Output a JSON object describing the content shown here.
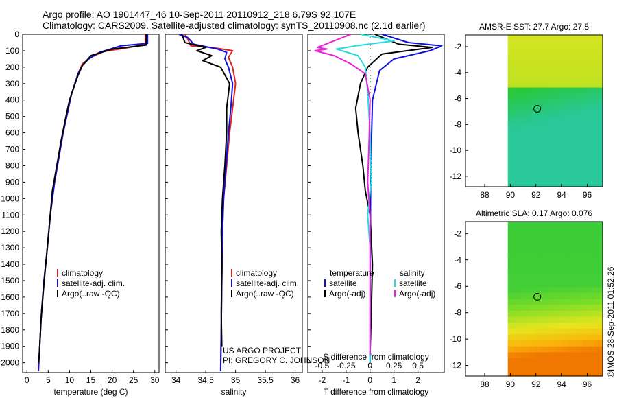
{
  "header": {
    "line1": "Argo profile: AO 1901447_46 10-Sep-2011 20110912_218 6.79S 92.107E",
    "line2": "Climatology: CARS2009. Satellite-adjusted climatology: synTS_20110908.nc (2.1d earlier)"
  },
  "colors": {
    "climatology": "#dd2222",
    "satellite": "#1010dd",
    "argo": "#000000",
    "sal_satellite": "#22dddd",
    "sal_argo": "#ee22dd"
  },
  "credits": {
    "project": "US ARGO PROJECT",
    "pi": "PI: GREGORY C. JOHNSON",
    "stamp": "©IMOS 28-Sep-2011 01:52:26"
  },
  "chart_data": [
    {
      "id": "temperature",
      "type": "line",
      "xlabel": "temperature (deg C)",
      "xlim": [
        -1,
        31
      ],
      "xticks": [
        0,
        5,
        10,
        15,
        20,
        25,
        30
      ],
      "ylim": [
        2060,
        0
      ],
      "yticks": [
        0,
        100,
        200,
        300,
        400,
        500,
        600,
        700,
        800,
        900,
        1000,
        1100,
        1200,
        1300,
        1400,
        1500,
        1600,
        1700,
        1800,
        1900,
        2000
      ],
      "legend": [
        "climatology",
        "satellite-adj. clim.",
        "Argo(..raw -QC)"
      ],
      "series": [
        {
          "name": "climatology",
          "color_key": "climatology",
          "points": [
            [
              27.8,
              0
            ],
            [
              27.8,
              60
            ],
            [
              24,
              80
            ],
            [
              18,
              105
            ],
            [
              15,
              140
            ],
            [
              13,
              180
            ],
            [
              12,
              240
            ],
            [
              10.5,
              360
            ],
            [
              9.5,
              480
            ],
            [
              8.5,
              600
            ],
            [
              7.5,
              750
            ],
            [
              6.5,
              900
            ],
            [
              5.5,
              1100
            ],
            [
              4.8,
              1300
            ],
            [
              4,
              1500
            ],
            [
              3.4,
              1700
            ],
            [
              3,
              1900
            ],
            [
              2.7,
              2050
            ]
          ]
        },
        {
          "name": "satellite-adj. clim.",
          "color_key": "satellite",
          "points": [
            [
              28.3,
              0
            ],
            [
              28.3,
              55
            ],
            [
              22,
              70
            ],
            [
              17,
              110
            ],
            [
              14.5,
              150
            ],
            [
              13,
              190
            ],
            [
              12,
              240
            ],
            [
              10.5,
              360
            ],
            [
              9.5,
              480
            ],
            [
              8.5,
              600
            ],
            [
              7.5,
              750
            ],
            [
              6.5,
              900
            ],
            [
              5.5,
              1100
            ],
            [
              4.8,
              1300
            ],
            [
              4,
              1500
            ],
            [
              3.4,
              1700
            ],
            [
              3,
              1900
            ],
            [
              2.7,
              2050
            ]
          ]
        },
        {
          "name": "Argo(..raw -QC)",
          "color_key": "argo",
          "points": [
            [
              28,
              0
            ],
            [
              28,
              65
            ],
            [
              20,
              90
            ],
            [
              15,
              130
            ],
            [
              13,
              190
            ],
            [
              12,
              250
            ],
            [
              10,
              400
            ],
            [
              9,
              520
            ],
            [
              8,
              650
            ],
            [
              7,
              800
            ],
            [
              6,
              950
            ],
            [
              5.3,
              1150
            ],
            [
              4.6,
              1350
            ],
            [
              3.9,
              1550
            ],
            [
              3.3,
              1750
            ],
            [
              2.9,
              1950
            ],
            [
              2.7,
              2000
            ]
          ]
        }
      ]
    },
    {
      "id": "salinity",
      "type": "line",
      "xlabel": "salinity",
      "xlim": [
        33.82,
        36.12
      ],
      "xticks": [
        34,
        34.5,
        35,
        35.5,
        36
      ],
      "ylim": [
        2060,
        0
      ],
      "legend": [
        "climatology",
        "satellite-adj. clim.",
        "Argo(..raw -QC)"
      ],
      "series": [
        {
          "name": "climatology",
          "color_key": "climatology",
          "points": [
            [
              34.15,
              0
            ],
            [
              34.2,
              30
            ],
            [
              34.25,
              70
            ],
            [
              34.6,
              80
            ],
            [
              34.95,
              100
            ],
            [
              34.88,
              140
            ],
            [
              34.95,
              200
            ],
            [
              35.0,
              300
            ],
            [
              34.95,
              450
            ],
            [
              34.9,
              600
            ],
            [
              34.85,
              800
            ],
            [
              34.8,
              1000
            ],
            [
              34.78,
              1200
            ],
            [
              34.77,
              1500
            ],
            [
              34.76,
              1800
            ],
            [
              34.75,
              2050
            ]
          ]
        },
        {
          "name": "satellite-adj. clim.",
          "color_key": "satellite",
          "points": [
            [
              34.05,
              0
            ],
            [
              34.2,
              20
            ],
            [
              34.3,
              60
            ],
            [
              34.7,
              90
            ],
            [
              34.85,
              110
            ],
            [
              34.82,
              150
            ],
            [
              34.88,
              200
            ],
            [
              34.95,
              300
            ],
            [
              34.92,
              450
            ],
            [
              34.88,
              600
            ],
            [
              34.84,
              800
            ],
            [
              34.8,
              1000
            ],
            [
              34.78,
              1200
            ],
            [
              34.77,
              1500
            ],
            [
              34.76,
              1800
            ],
            [
              34.75,
              2050
            ]
          ]
        },
        {
          "name": "Argo(..raw -QC)",
          "color_key": "argo",
          "points": [
            [
              34.1,
              0
            ],
            [
              34.15,
              50
            ],
            [
              34.5,
              80
            ],
            [
              34.35,
              100
            ],
            [
              34.6,
              130
            ],
            [
              34.45,
              160
            ],
            [
              34.75,
              200
            ],
            [
              34.9,
              300
            ],
            [
              34.85,
              450
            ],
            [
              34.85,
              600
            ],
            [
              34.82,
              800
            ],
            [
              34.78,
              1000
            ],
            [
              34.76,
              1200
            ],
            [
              34.77,
              1400
            ],
            [
              34.76,
              1700
            ],
            [
              34.77,
              1900
            ]
          ]
        }
      ]
    },
    {
      "id": "difference",
      "type": "line",
      "xlabel": "T difference from climatology",
      "top_label": "S difference from climatology",
      "xlim": [
        -2.6,
        3.1
      ],
      "xticks": [
        -2,
        -1,
        0,
        1,
        2
      ],
      "sticks_labels": [
        "-0.5",
        "-0.25",
        "0",
        "0.25",
        "0.5"
      ],
      "ylim": [
        2060,
        0
      ],
      "legend_headers": [
        "temperature",
        "salinity"
      ],
      "legend": [
        "satellite",
        "Argo(-adj)",
        "satellite",
        "Argo(-adj)"
      ],
      "series": [
        {
          "name": "T satellite",
          "color_key": "satellite",
          "points": [
            [
              0.5,
              0
            ],
            [
              1.6,
              50
            ],
            [
              3.0,
              70
            ],
            [
              2.5,
              100
            ],
            [
              1.0,
              150
            ],
            [
              0.4,
              220
            ],
            [
              0.1,
              400
            ],
            [
              0.05,
              700
            ],
            [
              0.02,
              1000
            ],
            [
              0.01,
              1500
            ],
            [
              0,
              2000
            ]
          ]
        },
        {
          "name": "T Argo(-adj)",
          "color_key": "argo",
          "points": [
            [
              0.2,
              0
            ],
            [
              1.2,
              60
            ],
            [
              2.6,
              80
            ],
            [
              0.5,
              120
            ],
            [
              -0.1,
              200
            ],
            [
              -0.4,
              300
            ],
            [
              -0.6,
              450
            ],
            [
              -0.5,
              600
            ],
            [
              -0.3,
              800
            ],
            [
              -0.2,
              950
            ],
            [
              0,
              1100
            ],
            [
              0.1,
              1400
            ],
            [
              0.05,
              1700
            ],
            [
              0,
              1950
            ]
          ]
        },
        {
          "name": "S satellite",
          "color_key": "sal_satellite",
          "points": [
            [
              -0.4,
              0
            ],
            [
              1.0,
              40
            ],
            [
              -0.6,
              70
            ],
            [
              -1.4,
              90
            ],
            [
              -0.5,
              130
            ],
            [
              -0.2,
              200
            ],
            [
              -0.1,
              350
            ],
            [
              0,
              600
            ],
            [
              0.05,
              900
            ],
            [
              -0.1,
              1100
            ],
            [
              0,
              1300
            ],
            [
              0,
              1600
            ],
            [
              0,
              2000
            ]
          ]
        },
        {
          "name": "S Argo(-adj)",
          "color_key": "sal_argo",
          "points": [
            [
              -0.8,
              0
            ],
            [
              -2.2,
              80
            ],
            [
              -1.8,
              90
            ],
            [
              -2.3,
              100
            ],
            [
              -1.5,
              130
            ],
            [
              -0.8,
              180
            ],
            [
              -0.2,
              240
            ],
            [
              0,
              400
            ],
            [
              -0.05,
              700
            ],
            [
              -0.1,
              900
            ],
            [
              0,
              1100
            ],
            [
              0,
              1500
            ],
            [
              0,
              1950
            ]
          ]
        }
      ]
    },
    {
      "id": "sst_map",
      "type": "heatmap",
      "title": "AMSR-E SST: 27.7 Argo: 27.8",
      "xlim": [
        86.5,
        97.2
      ],
      "xticks": [
        88,
        90,
        92,
        94,
        96
      ],
      "ylim": [
        -12.8,
        -1.1
      ],
      "yticks": [
        -2,
        -4,
        -6,
        -8,
        -10,
        -12
      ],
      "data_lon_start": 89.8,
      "marker": [
        92.1,
        -6.79
      ]
    },
    {
      "id": "sla_map",
      "type": "heatmap",
      "title": "Altimetric SLA: 0.17 Argo: 0.076",
      "xlim": [
        86.5,
        97.2
      ],
      "xticks": [
        88,
        90,
        92,
        94,
        96
      ],
      "ylim": [
        -12.8,
        -1.1
      ],
      "yticks": [
        -2,
        -4,
        -6,
        -8,
        -10,
        -12
      ],
      "data_lon_start": 89.8,
      "marker": [
        92.1,
        -6.79
      ]
    }
  ]
}
